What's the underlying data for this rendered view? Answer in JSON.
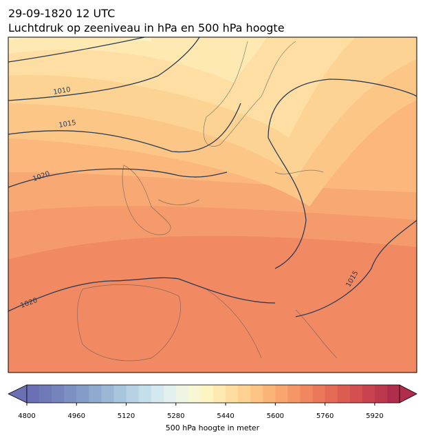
{
  "title": "29-09-1820 12 UTC",
  "subtitle": "Luchtdruk op zeeniveau in hPa en 500 hPa hoogte",
  "isobar_labels": [
    1010,
    1015,
    1020,
    1020,
    1015
  ],
  "colorbar": {
    "label": "500 hPa hoogte in meter",
    "lim": [
      4800,
      6000
    ],
    "ticks": [
      4800,
      4960,
      5120,
      5280,
      5440,
      5600,
      5760,
      5920
    ],
    "colors": [
      "#6b70b4",
      "#7079b8",
      "#7684bd",
      "#7d90c2",
      "#849dc8",
      "#8eabcf",
      "#9ab8d6",
      "#a7c5dd",
      "#b6d2e4",
      "#c5deeb",
      "#d4e8ef",
      "#e2f0ef",
      "#eef5e3",
      "#f7f7d3",
      "#fdf4c2",
      "#fee9b0",
      "#fedea0",
      "#fdd191",
      "#fcc384",
      "#fab478",
      "#f8a56f",
      "#f59667",
      "#f18760",
      "#ec785a",
      "#e56a55",
      "#dd5c51",
      "#d44f4f",
      "#c9434e",
      "#bd384d",
      "#b02e4b"
    ]
  }
}
